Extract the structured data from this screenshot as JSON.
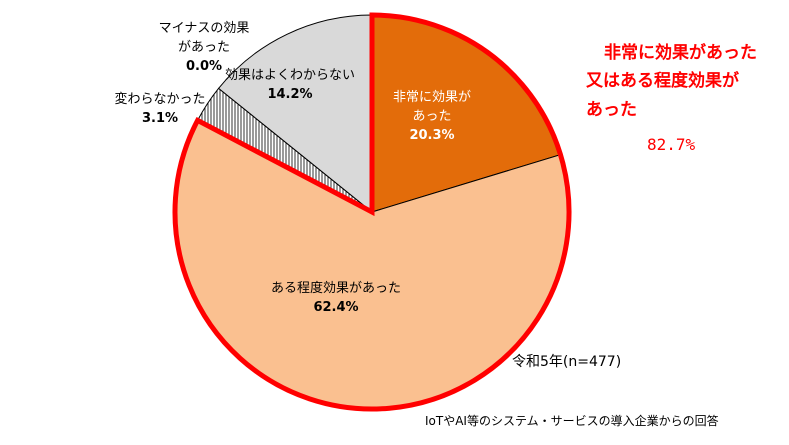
{
  "chart_data": {
    "type": "pie",
    "slices": [
      {
        "label_lines": [
          "非常に効果が",
          "あった"
        ],
        "value": 20.3,
        "value_text": "20.3%",
        "color": "#e36c0a",
        "label_color": "#ffffff"
      },
      {
        "label_lines": [
          "ある程度効果があった"
        ],
        "value": 62.4,
        "value_text": "62.4%",
        "color": "#fac090",
        "label_color": "#000000"
      },
      {
        "label_lines": [
          "変わらなかった"
        ],
        "value": 3.1,
        "value_text": "3.1%",
        "color": "#ffffff",
        "pattern": "vertical-hatch",
        "label_color": "#000000"
      },
      {
        "label_lines": [
          "マイナスの効果",
          "があった"
        ],
        "value": 0.0,
        "value_text": "0.0%",
        "color": "#ffffff",
        "label_color": "#000000"
      },
      {
        "label_lines": [
          "効果はよくわからない"
        ],
        "value": 14.2,
        "value_text": "14.2%",
        "color": "#d9d9d9",
        "label_color": "#000000"
      }
    ],
    "highlight_color": "#ff0000",
    "callout": {
      "lines": [
        "非常に効果があった",
        "又はある程度効果が",
        "あった"
      ],
      "value": "82.7%"
    },
    "note": "令和5年(n=477)",
    "source": "IoTやAI等のシステム・サービスの導入企業からの回答"
  }
}
